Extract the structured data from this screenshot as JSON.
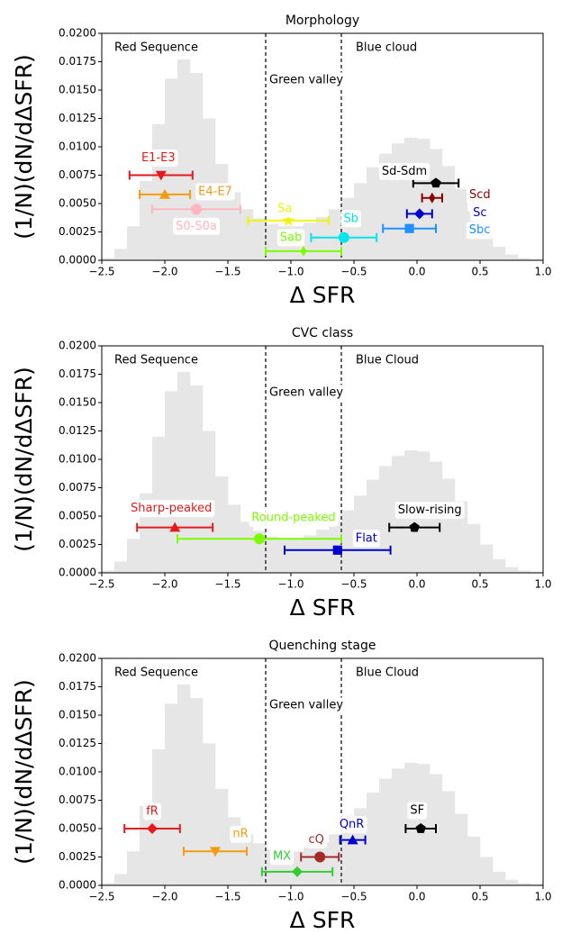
{
  "chart_data": [
    {
      "type": "errorbar",
      "title": "Morphology",
      "xlabel": "Δ SFR",
      "ylabel": "(1/N)(dN/dΔSFR)",
      "xlim": [
        -2.5,
        1.0
      ],
      "ylim": [
        0,
        0.02
      ],
      "xticks": [
        {
          "value": -2.5,
          "label": "−2.5"
        },
        {
          "value": -2.0,
          "label": "−2.0"
        },
        {
          "value": -1.5,
          "label": "−1.5"
        },
        {
          "value": -1.0,
          "label": "−1.0"
        },
        {
          "value": -0.5,
          "label": "−0.5"
        },
        {
          "value": 0.0,
          "label": "0.0"
        },
        0.5,
        {
          "value": 1.0,
          "label": "1.0"
        }
      ],
      "yticks": [
        {
          "value": 0,
          "label": "0.0000"
        },
        {
          "value": 0.0025,
          "label": "0.0025"
        },
        {
          "value": 0.005,
          "label": "0.0050"
        },
        {
          "value": 0.0075,
          "label": "0.0075"
        },
        {
          "value": 0.01,
          "label": "0.0100"
        },
        {
          "value": 0.0125,
          "label": "0.0125"
        },
        {
          "value": 0.015,
          "label": "0.0150"
        },
        {
          "value": 0.0175,
          "label": "0.0175"
        },
        {
          "value": 0.02,
          "label": "0.0200"
        }
      ],
      "vlines": [
        -1.2,
        -0.6
      ],
      "regions": [
        "Red Sequence",
        "Green valley",
        "Blue cloud"
      ],
      "histogram": {
        "color": "#e6e6e6",
        "bins": [
          -2.5,
          -2.4,
          -2.3,
          -2.2,
          -2.1,
          -2.0,
          -1.9,
          -1.8,
          -1.7,
          -1.6,
          -1.5,
          -1.4,
          -1.3,
          -1.2,
          -1.1,
          -1.0,
          -0.9,
          -0.8,
          -0.7,
          -0.6,
          -0.5,
          -0.4,
          -0.3,
          -0.2,
          -0.1,
          0.0,
          0.1,
          0.2,
          0.3,
          0.4,
          0.5,
          0.6,
          0.7,
          0.8,
          0.9,
          1.0
        ],
        "counts": [
          0.0002,
          0.001,
          0.003,
          0.007,
          0.012,
          0.016,
          0.0177,
          0.0165,
          0.0125,
          0.0085,
          0.006,
          0.0045,
          0.0037,
          0.0032,
          0.003,
          0.003,
          0.0033,
          0.0038,
          0.0045,
          0.0055,
          0.0068,
          0.0082,
          0.0094,
          0.0103,
          0.0108,
          0.0107,
          0.0098,
          0.0083,
          0.0063,
          0.0043,
          0.0025,
          0.0012,
          0.0005,
          0.0002,
          0.0001
        ]
      },
      "series": [
        {
          "name": "E1-E3",
          "color": "#e41a1c",
          "marker": "v",
          "x": -2.03,
          "xerr": 0.25,
          "y": 0.0075
        },
        {
          "name": "E4-E7",
          "color": "#f39c12",
          "marker": "^",
          "x": -2.0,
          "xerr": 0.2,
          "y": 0.0058
        },
        {
          "name": "S0-S0a",
          "color": "#ffb6c1",
          "marker": "o",
          "x": -1.75,
          "xerr": 0.35,
          "y": 0.0045
        },
        {
          "name": "Sa",
          "color": "#f2f20a",
          "marker": "*",
          "x": -1.02,
          "xerr": 0.32,
          "y": 0.0035
        },
        {
          "name": "Sab",
          "color": "#7cfc00",
          "marker": "d",
          "x": -0.9,
          "xerr": 0.3,
          "y": 0.0008
        },
        {
          "name": "Sb",
          "color": "#00e5ee",
          "marker": "o",
          "x": -0.58,
          "xerr": 0.26,
          "y": 0.002
        },
        {
          "name": "Sbc",
          "color": "#1e90ff",
          "marker": "s",
          "x": -0.06,
          "xerr": 0.21,
          "y": 0.0028
        },
        {
          "name": "Sc",
          "color": "#0000cd",
          "marker": "D",
          "x": 0.02,
          "xerr": 0.1,
          "y": 0.0041
        },
        {
          "name": "Scd",
          "color": "#8b0000",
          "marker": "d",
          "x": 0.12,
          "xerr": 0.08,
          "y": 0.0055
        },
        {
          "name": "Sd-Sdm",
          "color": "#000000",
          "marker": "p",
          "x": 0.15,
          "xerr": 0.18,
          "y": 0.0068
        }
      ]
    },
    {
      "type": "errorbar",
      "title": "CVC class",
      "xlabel": "Δ SFR",
      "ylabel": "(1/N)(dN/dΔSFR)",
      "xlim": [
        -2.5,
        1.0
      ],
      "ylim": [
        0,
        0.02
      ],
      "xticks": [
        {
          "value": -2.5,
          "label": "−2.5"
        },
        {
          "value": -2.0,
          "label": "−2.0"
        },
        {
          "value": -1.5,
          "label": "−1.5"
        },
        {
          "value": -1.0,
          "label": "−1.0"
        },
        {
          "value": -0.5,
          "label": "−0.5"
        },
        {
          "value": 0.0,
          "label": "0.0"
        },
        0.5,
        {
          "value": 1.0,
          "label": "1.0"
        }
      ],
      "yticks": [
        {
          "value": 0,
          "label": "0.0000"
        },
        {
          "value": 0.0025,
          "label": "0.0025"
        },
        {
          "value": 0.005,
          "label": "0.0050"
        },
        {
          "value": 0.0075,
          "label": "0.0075"
        },
        {
          "value": 0.01,
          "label": "0.0100"
        },
        {
          "value": 0.0125,
          "label": "0.0125"
        },
        {
          "value": 0.015,
          "label": "0.0150"
        },
        {
          "value": 0.0175,
          "label": "0.0175"
        },
        {
          "value": 0.02,
          "label": "0.0200"
        }
      ],
      "vlines": [
        -1.2,
        -0.6
      ],
      "regions": [
        "Red Sequence",
        "Green valley",
        "Blue Cloud"
      ],
      "histogram": {
        "color": "#e6e6e6",
        "bins": [
          -2.5,
          -2.4,
          -2.3,
          -2.2,
          -2.1,
          -2.0,
          -1.9,
          -1.8,
          -1.7,
          -1.6,
          -1.5,
          -1.4,
          -1.3,
          -1.2,
          -1.1,
          -1.0,
          -0.9,
          -0.8,
          -0.7,
          -0.6,
          -0.5,
          -0.4,
          -0.3,
          -0.2,
          -0.1,
          0.0,
          0.1,
          0.2,
          0.3,
          0.4,
          0.5,
          0.6,
          0.7,
          0.8,
          0.9,
          1.0
        ],
        "counts": [
          0.0002,
          0.001,
          0.003,
          0.007,
          0.012,
          0.016,
          0.0177,
          0.0165,
          0.0125,
          0.0085,
          0.006,
          0.0045,
          0.0037,
          0.0032,
          0.003,
          0.003,
          0.0033,
          0.0038,
          0.0045,
          0.0055,
          0.0068,
          0.0082,
          0.0094,
          0.0103,
          0.0108,
          0.0107,
          0.0098,
          0.0083,
          0.0063,
          0.0043,
          0.0025,
          0.0012,
          0.0005,
          0.0002,
          0.0001
        ]
      },
      "series": [
        {
          "name": "Sharp-peaked",
          "color": "#e41a1c",
          "marker": "^",
          "x": -1.92,
          "xerr": 0.3,
          "y": 0.004
        },
        {
          "name": "Round-peaked",
          "color": "#7cfc00",
          "marker": "o",
          "x": -1.25,
          "xerr": 0.65,
          "y": 0.003
        },
        {
          "name": "Flat",
          "color": "#0000cd",
          "marker": "s",
          "x": -0.63,
          "xerr": 0.42,
          "y": 0.002
        },
        {
          "name": "Slow-rising",
          "color": "#000000",
          "marker": "p",
          "x": -0.02,
          "xerr": 0.2,
          "y": 0.004
        }
      ]
    },
    {
      "type": "errorbar",
      "title": "Quenching stage",
      "xlabel": "Δ SFR",
      "ylabel": "(1/N)(dN/dΔSFR)",
      "xlim": [
        -2.5,
        1.0
      ],
      "ylim": [
        0,
        0.02
      ],
      "xticks": [
        {
          "value": -2.5,
          "label": "−2.5"
        },
        {
          "value": -2.0,
          "label": "−2.0"
        },
        {
          "value": -1.5,
          "label": "−1.5"
        },
        {
          "value": -1.0,
          "label": "−1.0"
        },
        {
          "value": -0.5,
          "label": "−0.5"
        },
        {
          "value": 0.0,
          "label": "0.0"
        },
        0.5,
        {
          "value": 1.0,
          "label": "1.0"
        }
      ],
      "yticks": [
        {
          "value": 0,
          "label": "0.0000"
        },
        {
          "value": 0.0025,
          "label": "0.0025"
        },
        {
          "value": 0.005,
          "label": "0.0050"
        },
        {
          "value": 0.0075,
          "label": "0.0075"
        },
        {
          "value": 0.01,
          "label": "0.0100"
        },
        {
          "value": 0.0125,
          "label": "0.0125"
        },
        {
          "value": 0.015,
          "label": "0.0150"
        },
        {
          "value": 0.0175,
          "label": "0.0175"
        },
        {
          "value": 0.02,
          "label": "0.0200"
        }
      ],
      "vlines": [
        -1.2,
        -0.6
      ],
      "regions": [
        "Red Sequence",
        "Green valley",
        "Blue Cloud"
      ],
      "histogram": {
        "color": "#e6e6e6",
        "bins": [
          -2.5,
          -2.4,
          -2.3,
          -2.2,
          -2.1,
          -2.0,
          -1.9,
          -1.8,
          -1.7,
          -1.6,
          -1.5,
          -1.4,
          -1.3,
          -1.2,
          -1.1,
          -1.0,
          -0.9,
          -0.8,
          -0.7,
          -0.6,
          -0.5,
          -0.4,
          -0.3,
          -0.2,
          -0.1,
          0.0,
          0.1,
          0.2,
          0.3,
          0.4,
          0.5,
          0.6,
          0.7,
          0.8,
          0.9,
          1.0
        ],
        "counts": [
          0.0002,
          0.001,
          0.003,
          0.007,
          0.012,
          0.016,
          0.0177,
          0.0165,
          0.0125,
          0.0085,
          0.006,
          0.0045,
          0.0037,
          0.0032,
          0.003,
          0.003,
          0.0033,
          0.0038,
          0.0045,
          0.0055,
          0.0068,
          0.0082,
          0.0094,
          0.0103,
          0.0108,
          0.0107,
          0.0098,
          0.0083,
          0.0063,
          0.0043,
          0.0025,
          0.0012,
          0.0005,
          0.0002,
          0.0001
        ]
      },
      "series": [
        {
          "name": "fR",
          "color": "#e41a1c",
          "marker": "D",
          "x": -2.1,
          "xerr": 0.22,
          "y": 0.005
        },
        {
          "name": "nR",
          "color": "#f39c12",
          "marker": "v",
          "x": -1.6,
          "xerr": 0.25,
          "y": 0.003
        },
        {
          "name": "MX",
          "color": "#32cd32",
          "marker": "D",
          "x": -0.95,
          "xerr": 0.28,
          "y": 0.0012
        },
        {
          "name": "cQ",
          "color": "#a52a2a",
          "marker": "o",
          "x": -0.77,
          "xerr": 0.15,
          "y": 0.0025
        },
        {
          "name": "QnR",
          "color": "#0000cd",
          "marker": "^",
          "x": -0.51,
          "xerr": 0.1,
          "y": 0.004
        },
        {
          "name": "SF",
          "color": "#000000",
          "marker": "p",
          "x": 0.03,
          "xerr": 0.12,
          "y": 0.005
        }
      ]
    }
  ]
}
